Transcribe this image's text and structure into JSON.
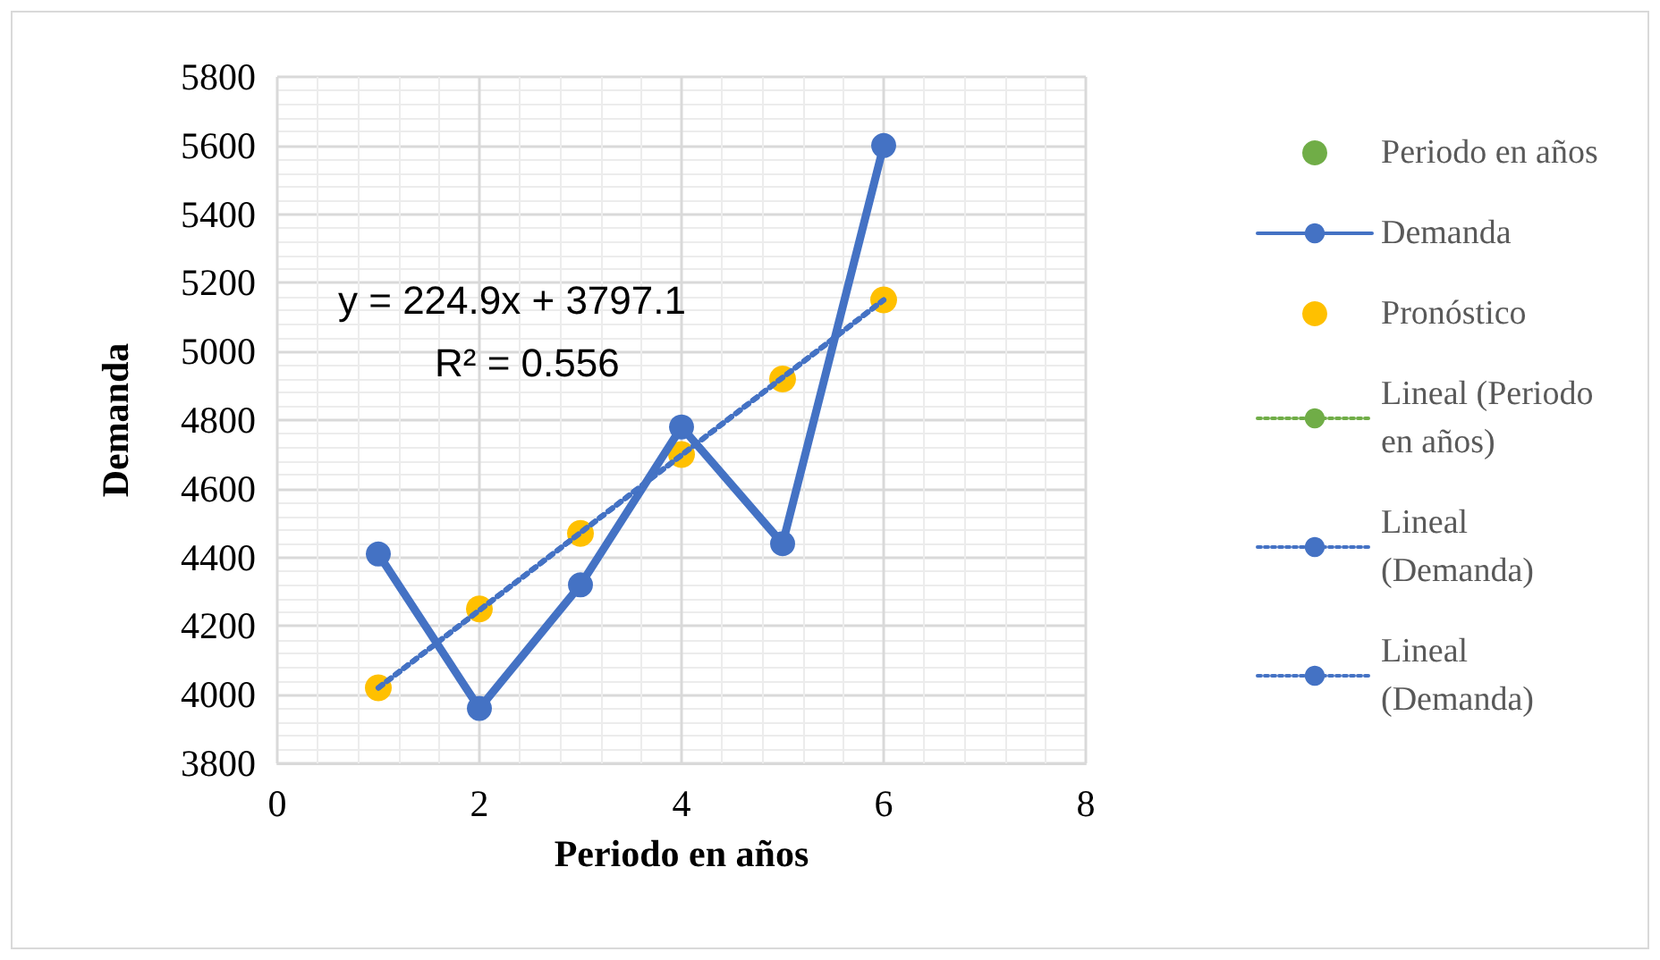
{
  "chart_data": {
    "type": "scatter",
    "xlabel": "Periodo en años",
    "ylabel": "Demanda",
    "xlim": [
      0,
      8
    ],
    "xticks": [
      0,
      2,
      4,
      6,
      8
    ],
    "ylim": [
      3800,
      5800
    ],
    "yticks": [
      3800,
      4000,
      4200,
      4400,
      4600,
      4800,
      5000,
      5200,
      5400,
      5600,
      5800
    ],
    "grid": true,
    "legend": "right",
    "annotations": [
      "y = 224.9x + 3797.1",
      "R² = 0.556"
    ],
    "series": [
      {
        "name": "Periodo en años",
        "color": "#70ad47",
        "marker": "circle"
      },
      {
        "name": "Demanda",
        "type": "line",
        "color": "#4472c4",
        "marker": "circle",
        "line_style": "solid",
        "x": [
          1,
          2,
          3,
          4,
          5,
          6
        ],
        "values": [
          4410,
          3960,
          4320,
          4780,
          4440,
          5600
        ]
      },
      {
        "name": "Pronóstico",
        "color": "#ffc000",
        "marker": "circle",
        "x": [
          1,
          2,
          3,
          4,
          5,
          6
        ],
        "values": [
          4020,
          4250,
          4470,
          4700,
          4920,
          5150
        ]
      },
      {
        "name": "Lineal (Periodo en años)",
        "type": "line",
        "color": "#70ad47",
        "marker": "none",
        "line_style": "dotted"
      },
      {
        "name": "Lineal (Demanda)",
        "type": "line",
        "color": "#4472c4",
        "marker": "none",
        "line_style": "dotted",
        "x": [
          1,
          6
        ],
        "values": [
          4020,
          5150
        ]
      },
      {
        "name": "Lineal (Demanda)",
        "type": "line",
        "color": "#4472c4",
        "marker": "none",
        "line_style": "dotted",
        "x": [
          1,
          6
        ],
        "values": [
          4020,
          5150
        ]
      }
    ]
  }
}
